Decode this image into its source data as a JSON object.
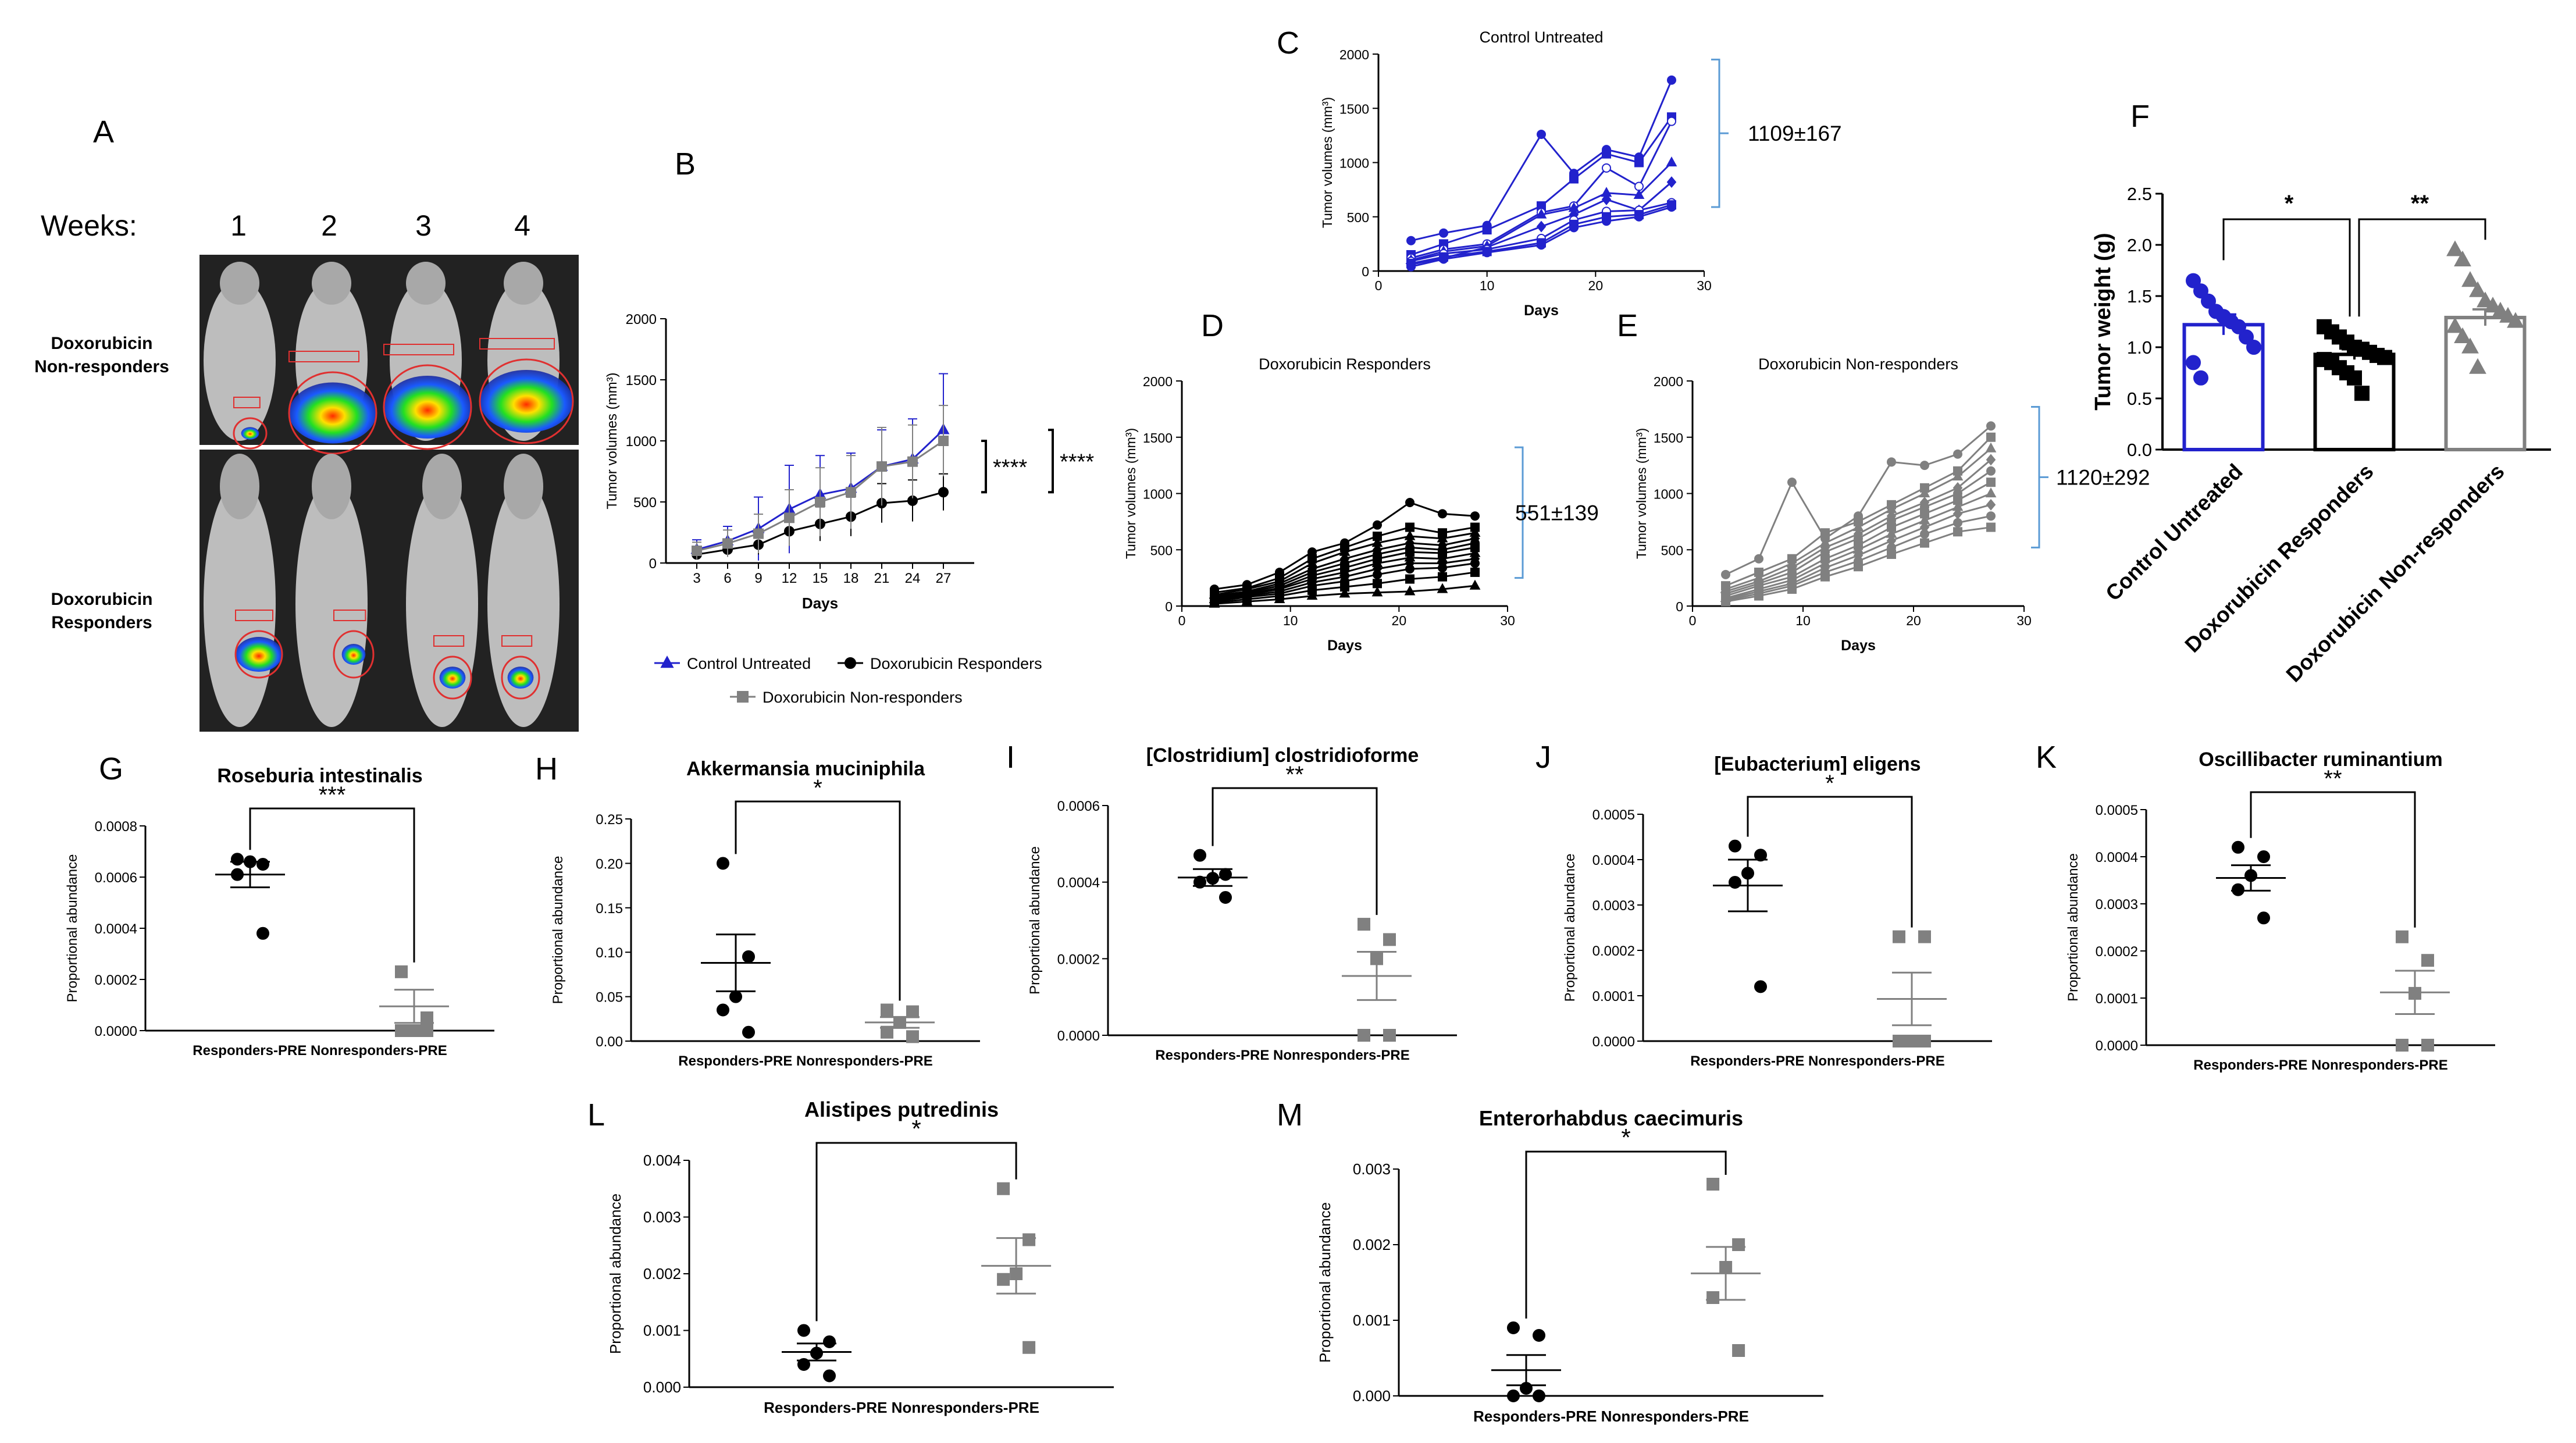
{
  "figure": {
    "panel_letters": [
      "A",
      "B",
      "C",
      "D",
      "E",
      "F",
      "G",
      "H",
      "I",
      "J",
      "K",
      "L",
      "M"
    ],
    "panelA": {
      "weeks_label": "Weeks:",
      "weeks": [
        "1",
        "2",
        "3",
        "4"
      ],
      "row_labels": [
        "Doxorubicin Non-responders",
        "Doxorubicin Responders"
      ]
    }
  },
  "colors": {
    "control": "#2222cc",
    "responders": "#000000",
    "nonresponders": "#808080",
    "bracket": "#5b9bd5",
    "roi": "#e03030"
  },
  "chart_data": [
    {
      "id": "B",
      "type": "line",
      "title": "",
      "xlabel": "Days",
      "ylabel": "Tumor volumes (mm³)",
      "x": [
        3,
        6,
        9,
        12,
        15,
        18,
        21,
        24,
        27
      ],
      "xticks": [
        "3",
        "6",
        "9",
        "12",
        "15",
        "18",
        "21",
        "24",
        "27"
      ],
      "ylim": [
        0,
        2000
      ],
      "yticks": [
        "0",
        "500",
        "1000",
        "1500",
        "2000"
      ],
      "series": [
        {
          "name": "Control Untreated",
          "color": "#2222cc",
          "marker": "triangle",
          "values": [
            110,
            180,
            280,
            440,
            560,
            610,
            790,
            850,
            1090
          ],
          "err": [
            80,
            120,
            260,
            360,
            320,
            290,
            300,
            330,
            460
          ]
        },
        {
          "name": "Doxorubicin Responders",
          "color": "#000000",
          "marker": "circle",
          "values": [
            70,
            110,
            150,
            260,
            320,
            380,
            490,
            510,
            580
          ],
          "err": [
            40,
            60,
            80,
            120,
            140,
            160,
            160,
            170,
            150
          ]
        },
        {
          "name": "Doxorubicin Non-responders",
          "color": "#808080",
          "marker": "square",
          "values": [
            100,
            160,
            240,
            370,
            500,
            580,
            790,
            830,
            1000
          ],
          "err": [
            70,
            110,
            160,
            230,
            280,
            300,
            320,
            300,
            290
          ]
        }
      ],
      "legend": [
        "Control Untreated",
        "Doxorubicin Responders",
        "Doxorubicin Non-responders"
      ],
      "annotations": [
        "****",
        "****"
      ]
    },
    {
      "id": "C",
      "type": "line",
      "title": "Control Untreated",
      "xlabel": "Days",
      "ylabel": "Tumor volumes (mm³)",
      "xlim": [
        0,
        30
      ],
      "xticks": [
        "0",
        "10",
        "20",
        "30"
      ],
      "ylim": [
        0,
        2000
      ],
      "yticks": [
        "0",
        "500",
        "1000",
        "1500",
        "2000"
      ],
      "x": [
        3,
        6,
        10,
        15,
        18,
        21,
        24,
        27
      ],
      "series": [
        {
          "values": [
            280,
            350,
            420,
            1260,
            900,
            1120,
            1050,
            1760
          ]
        },
        {
          "values": [
            150,
            250,
            380,
            600,
            850,
            1080,
            1000,
            1420
          ]
        },
        {
          "values": [
            120,
            200,
            250,
            540,
            600,
            950,
            780,
            1380
          ]
        },
        {
          "values": [
            100,
            180,
            230,
            520,
            580,
            720,
            700,
            1000
          ]
        },
        {
          "values": [
            60,
            120,
            220,
            410,
            520,
            660,
            560,
            820
          ]
        },
        {
          "values": [
            90,
            160,
            200,
            300,
            470,
            550,
            560,
            630
          ]
        },
        {
          "values": [
            70,
            130,
            180,
            260,
            430,
            500,
            520,
            610
          ]
        },
        {
          "values": [
            40,
            110,
            170,
            240,
            400,
            460,
            500,
            590
          ]
        }
      ],
      "annotation": "1109±167"
    },
    {
      "id": "D",
      "type": "line",
      "title": "Doxorubicin Responders",
      "xlabel": "Days",
      "ylabel": "Tumor volumes (mm³)",
      "xlim": [
        0,
        30
      ],
      "xticks": [
        "0",
        "10",
        "20",
        "30"
      ],
      "ylim": [
        0,
        2000
      ],
      "yticks": [
        "0",
        "500",
        "1000",
        "1500",
        "2000"
      ],
      "x": [
        3,
        6,
        9,
        12,
        15,
        18,
        21,
        24,
        27
      ],
      "series": [
        {
          "values": [
            150,
            190,
            300,
            480,
            560,
            720,
            920,
            820,
            800
          ]
        },
        {
          "values": [
            120,
            160,
            250,
            420,
            520,
            620,
            700,
            650,
            700
          ]
        },
        {
          "values": [
            100,
            150,
            220,
            380,
            480,
            560,
            620,
            600,
            650
          ]
        },
        {
          "values": [
            90,
            130,
            200,
            330,
            420,
            500,
            560,
            540,
            600
          ]
        },
        {
          "values": [
            80,
            120,
            180,
            300,
            380,
            460,
            520,
            500,
            560
          ]
        },
        {
          "values": [
            70,
            110,
            160,
            270,
            340,
            420,
            480,
            470,
            520
          ]
        },
        {
          "values": [
            60,
            100,
            150,
            240,
            300,
            380,
            430,
            420,
            470
          ]
        },
        {
          "values": [
            50,
            90,
            130,
            210,
            260,
            330,
            380,
            380,
            420
          ]
        },
        {
          "values": [
            40,
            80,
            110,
            180,
            220,
            280,
            330,
            340,
            380
          ]
        },
        {
          "values": [
            30,
            60,
            90,
            140,
            170,
            200,
            240,
            260,
            300
          ]
        },
        {
          "values": [
            20,
            40,
            60,
            90,
            110,
            120,
            130,
            150,
            180
          ]
        }
      ],
      "annotation": "551±139"
    },
    {
      "id": "E",
      "type": "line",
      "title": "Doxorubicin Non-responders",
      "xlabel": "Days",
      "ylabel": "Tumor volumes (mm³)",
      "xlim": [
        0,
        30
      ],
      "xticks": [
        "0",
        "10",
        "20",
        "30"
      ],
      "ylim": [
        0,
        2000
      ],
      "yticks": [
        "0",
        "500",
        "1000",
        "1500",
        "2000"
      ],
      "x": [
        3,
        6,
        9,
        12,
        15,
        18,
        21,
        24,
        27
      ],
      "series": [
        {
          "values": [
            280,
            420,
            1100,
            600,
            800,
            1280,
            1250,
            1350,
            1600
          ]
        },
        {
          "values": [
            180,
            300,
            420,
            650,
            750,
            900,
            1050,
            1200,
            1500
          ]
        },
        {
          "values": [
            150,
            250,
            380,
            560,
            700,
            860,
            1000,
            1150,
            1400
          ]
        },
        {
          "values": [
            130,
            220,
            340,
            520,
            640,
            800,
            920,
            1050,
            1300
          ]
        },
        {
          "values": [
            110,
            200,
            300,
            480,
            600,
            760,
            880,
            1000,
            1200
          ]
        },
        {
          "values": [
            90,
            180,
            260,
            420,
            540,
            700,
            820,
            940,
            1100
          ]
        },
        {
          "values": [
            70,
            150,
            230,
            380,
            500,
            640,
            760,
            880,
            1000
          ]
        },
        {
          "values": [
            60,
            130,
            200,
            340,
            450,
            580,
            700,
            820,
            900
          ]
        },
        {
          "values": [
            50,
            110,
            180,
            300,
            400,
            520,
            640,
            740,
            800
          ]
        },
        {
          "values": [
            40,
            90,
            150,
            260,
            350,
            460,
            560,
            660,
            700
          ]
        }
      ],
      "annotation": "1120±292"
    },
    {
      "id": "F",
      "type": "bar",
      "categories": [
        "Control Untreated",
        "Doxorubicin Responders",
        "Doxorubicin Non-responders"
      ],
      "values": [
        1.22,
        0.93,
        1.29
      ],
      "errors": [
        0.1,
        0.05,
        0.08
      ],
      "ylabel": "Tumor weight (g)",
      "ylim": [
        0,
        2.5
      ],
      "yticks": [
        "0.0",
        "0.5",
        "1.0",
        "1.5",
        "2.0",
        "2.5"
      ],
      "points": [
        [
          1.65,
          1.55,
          1.45,
          1.35,
          1.3,
          1.25,
          1.2,
          1.1,
          1.0,
          0.85,
          0.7
        ],
        [
          1.2,
          1.15,
          1.1,
          1.05,
          1.0,
          0.98,
          0.95,
          0.92,
          0.9,
          0.88,
          0.85,
          0.8,
          0.75,
          0.7,
          0.55
        ],
        [
          1.95,
          1.85,
          1.65,
          1.55,
          1.45,
          1.4,
          1.35,
          1.3,
          1.25,
          1.2,
          1.1,
          1.0,
          0.8
        ]
      ],
      "significance": [
        "*",
        "**"
      ]
    },
    {
      "id": "G",
      "type": "scatter",
      "title": "Roseburia intestinalis",
      "ylabel": "Proportional abundance",
      "categories": [
        "Responders-PRE",
        "Nonresponders-PRE"
      ],
      "ylim": [
        0,
        0.0008
      ],
      "yticks": [
        "0.0000",
        "0.0002",
        "0.0004",
        "0.0006",
        "0.0008"
      ],
      "groups": [
        [
          0.00067,
          0.00065,
          0.00066,
          0.00061,
          0.00038
        ],
        [
          0.00023,
          5e-05,
          0,
          0,
          0
        ]
      ],
      "means": [
        0.00061,
        9.5e-05
      ],
      "sems": [
        5e-05,
        6.5e-05
      ],
      "significance": "***"
    },
    {
      "id": "H",
      "type": "scatter",
      "title": "Akkermansia muciniphila",
      "ylabel": "Proportional abundance",
      "categories": [
        "Responders-PRE",
        "Nonresponders-PRE"
      ],
      "ylim": [
        0,
        0.25
      ],
      "yticks": [
        "0.00",
        "0.05",
        "0.10",
        "0.15",
        "0.20",
        "0.25"
      ],
      "groups": [
        [
          0.2,
          0.095,
          0.05,
          0.035,
          0.01
        ],
        [
          0.035,
          0.033,
          0.021,
          0.01,
          0.005
        ]
      ],
      "means": [
        0.088,
        0.021
      ],
      "sems": [
        0.032,
        0.006
      ],
      "significance": "*"
    },
    {
      "id": "I",
      "type": "scatter",
      "title": "[Clostridium] clostridioforme",
      "ylabel": "Proportional abundance",
      "categories": [
        "Responders-PRE",
        "Nonresponders-PRE"
      ],
      "ylim": [
        0,
        0.0006
      ],
      "yticks": [
        "0.0000",
        "0.0002",
        "0.0004",
        "0.0006"
      ],
      "groups": [
        [
          0.00047,
          0.00042,
          0.00041,
          0.0004,
          0.00036
        ],
        [
          0.00029,
          0.00025,
          0.0002,
          0,
          0
        ]
      ],
      "means": [
        0.000412,
        0.000155
      ],
      "sems": [
        2.2e-05,
        6.3e-05
      ],
      "significance": "**"
    },
    {
      "id": "J",
      "type": "scatter",
      "title": "[Eubacterium] eligens",
      "ylabel": "Proportional abundance",
      "categories": [
        "Responders-PRE",
        "Nonresponders-PRE"
      ],
      "ylim": [
        0,
        0.0005
      ],
      "yticks": [
        "0.0000",
        "0.0001",
        "0.0002",
        "0.0003",
        "0.0004",
        "0.0005"
      ],
      "groups": [
        [
          0.00043,
          0.00041,
          0.00037,
          0.00035,
          0.00012
        ],
        [
          0.00023,
          0.00023,
          0,
          0,
          0
        ]
      ],
      "means": [
        0.000343,
        9.3e-05
      ],
      "sems": [
        5.7e-05,
        5.8e-05
      ],
      "significance": "*"
    },
    {
      "id": "K",
      "type": "scatter",
      "title": "Oscillibacter ruminantium",
      "ylabel": "Proportional abundance",
      "categories": [
        "Responders-PRE",
        "Nonresponders-PRE"
      ],
      "ylim": [
        0,
        0.0005
      ],
      "yticks": [
        "0.0000",
        "0.0001",
        "0.0002",
        "0.0003",
        "0.0004",
        "0.0005"
      ],
      "groups": [
        [
          0.00042,
          0.0004,
          0.00036,
          0.00033,
          0.00027
        ],
        [
          0.00023,
          0.00018,
          0.00011,
          0,
          0
        ]
      ],
      "means": [
        0.000355,
        0.000112
      ],
      "sems": [
        2.7e-05,
        4.6e-05
      ],
      "significance": "**"
    },
    {
      "id": "L",
      "type": "scatter",
      "title": "Alistipes putredinis",
      "ylabel": "Proportional abundance",
      "categories": [
        "Responders-PRE",
        "Nonresponders-PRE"
      ],
      "ylim": [
        0,
        0.004
      ],
      "yticks": [
        "0.000",
        "0.001",
        "0.002",
        "0.003",
        "0.004"
      ],
      "groups": [
        [
          0.001,
          0.0008,
          0.0006,
          0.0004,
          0.0002
        ],
        [
          0.0035,
          0.0026,
          0.002,
          0.0019,
          0.0007
        ]
      ],
      "means": [
        0.00062,
        0.00214
      ],
      "sems": [
        0.00015,
        0.00049
      ],
      "significance": "*"
    },
    {
      "id": "M",
      "type": "scatter",
      "title": "Enterorhabdus caecimuris",
      "ylabel": "Proportional abundance",
      "categories": [
        "Responders-PRE",
        "Nonresponders-PRE"
      ],
      "ylim": [
        0,
        0.003
      ],
      "yticks": [
        "0.000",
        "0.001",
        "0.002",
        "0.003"
      ],
      "groups": [
        [
          0.0009,
          0.0008,
          0.0001,
          0,
          0
        ],
        [
          0.0028,
          0.002,
          0.0017,
          0.0013,
          0.0006
        ]
      ],
      "means": [
        0.00034,
        0.00162
      ],
      "sems": [
        0.0002,
        0.00035
      ],
      "significance": "*"
    }
  ]
}
